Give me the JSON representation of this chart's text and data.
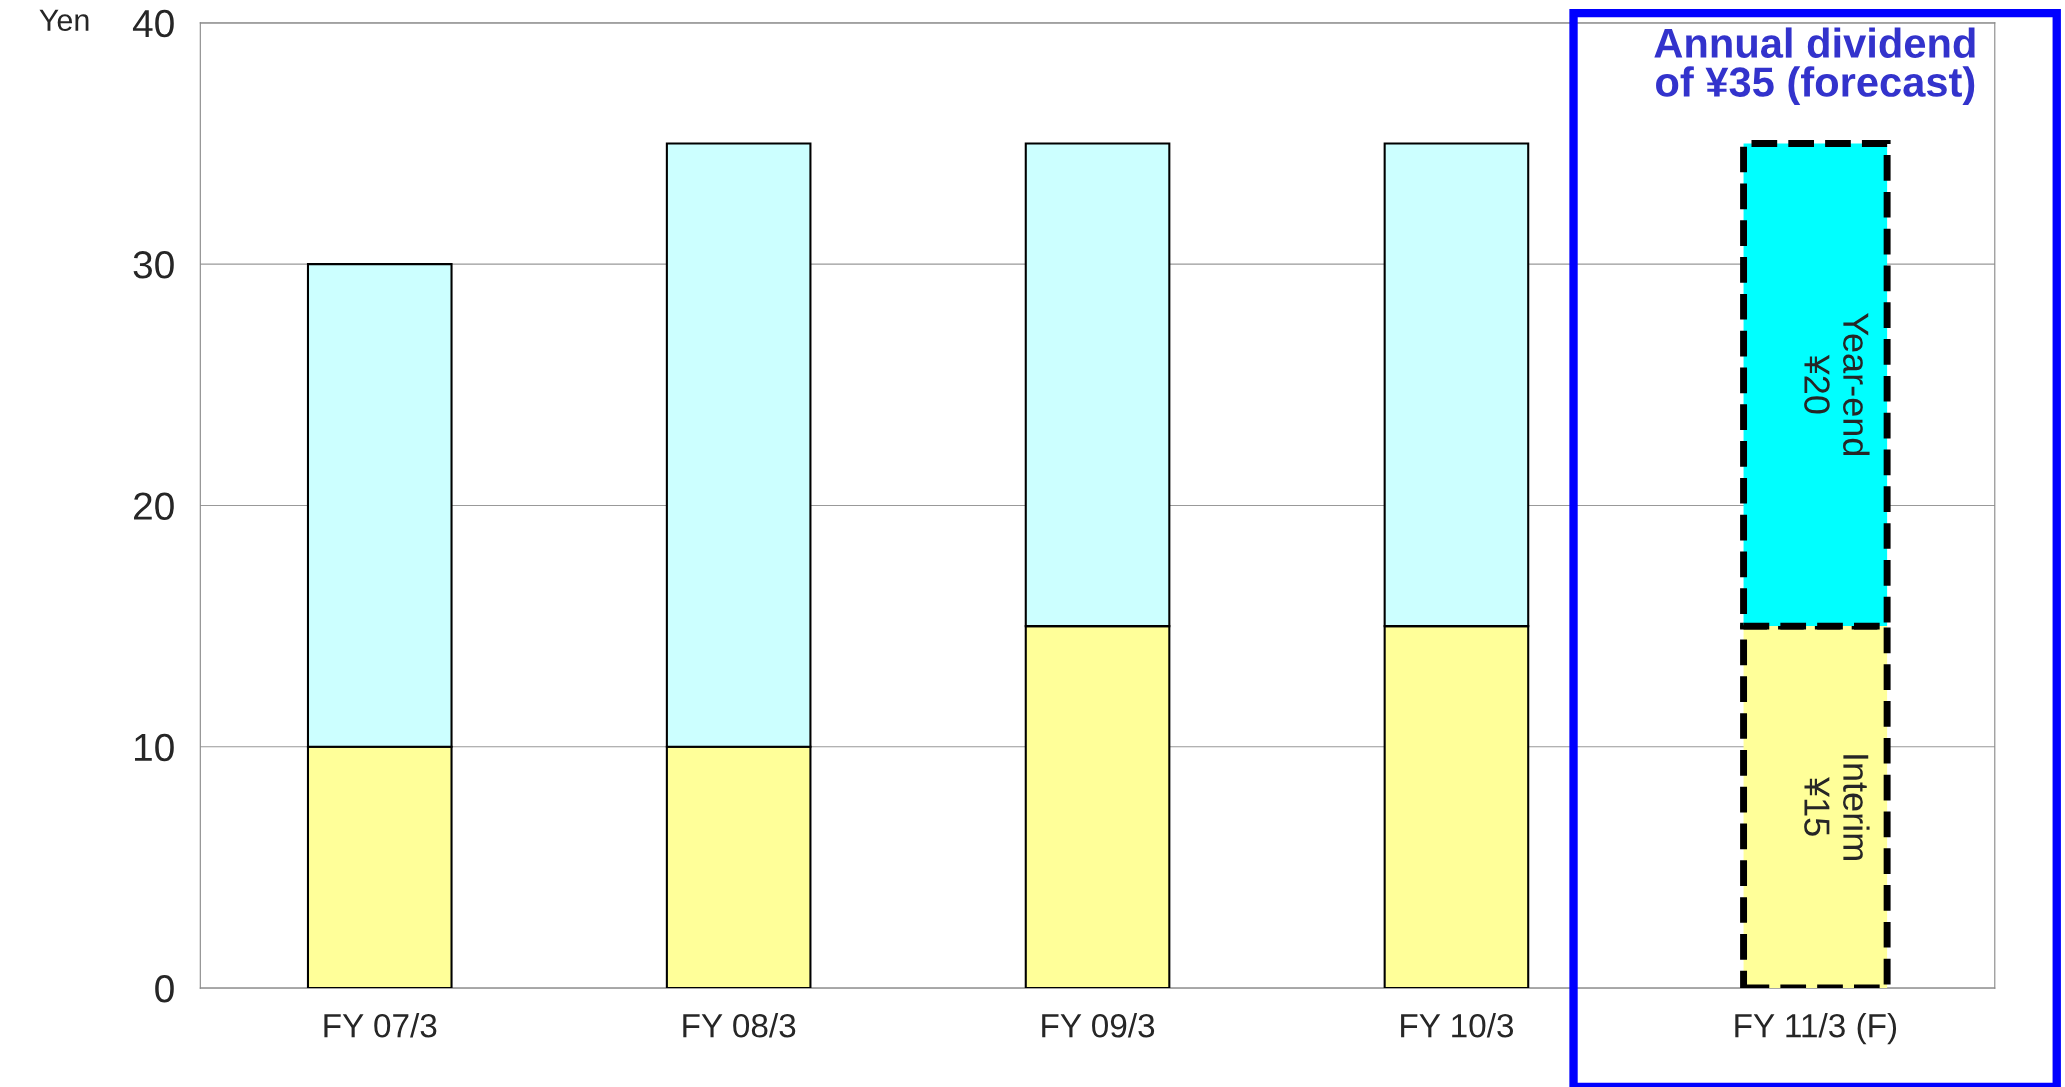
{
  "chart_data": {
    "type": "bar",
    "stacked": true,
    "ylabel": "Yen",
    "categories": [
      "FY 07/3",
      "FY 08/3",
      "FY 09/3",
      "FY 10/3",
      "FY 11/3 (F)"
    ],
    "series": [
      {
        "colors": [
          "#ffff99",
          "#ffff99",
          "#ffff99",
          "#ffff99",
          "#ffff99"
        ],
        "values": [
          10,
          10,
          15,
          15,
          15
        ]
      },
      {
        "colors": [
          "#ccffff",
          "#ccffff",
          "#ccffff",
          "#ccffff",
          "#00ffff"
        ],
        "values": [
          20,
          25,
          20,
          20,
          20
        ]
      }
    ],
    "ylim": [
      0,
      40
    ],
    "yticks": [
      0,
      10,
      20,
      30,
      40
    ],
    "grid": "y",
    "legend": false,
    "annotations": [
      "Interim\n¥15",
      "Year-end\n¥20",
      "Annual dividend\nof ¥35 (forecast)"
    ]
  }
}
